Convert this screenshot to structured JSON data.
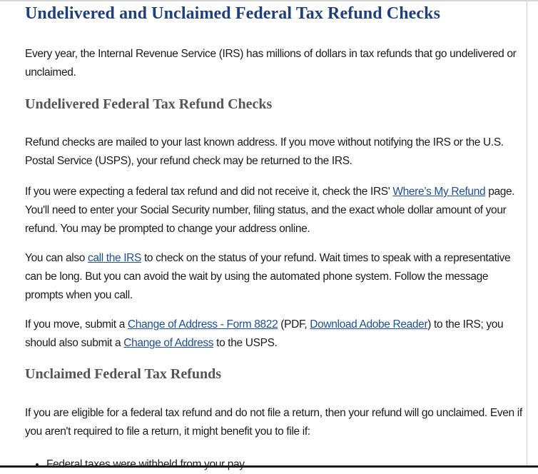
{
  "title": "Undelivered and Unclaimed Federal Tax Refund Checks",
  "intro": "Every year, the Internal Revenue Service (IRS) has millions of dollars in tax refunds that go undelivered or unclaimed.",
  "section1": {
    "heading": "Undelivered Federal Tax Refund Checks",
    "p1": "Refund checks are mailed to your last known address. If you move without notifying the IRS or the U.S. Postal Service (USPS), your refund check may be returned to the IRS.",
    "p2_a": "If you were expecting a federal tax refund and did not receive it, check the IRS' ",
    "p2_link": "Where’s My Refund",
    "p2_b": " page. You'll need to enter your Social Security number, filing status, and the exact whole dollar amount of your refund. You may be prompted to change your address online.",
    "p3_a": "You can also ",
    "p3_link": "call the IRS",
    "p3_b": " to check on the status of your refund. Wait times to speak with a representative can be long. But you can avoid the wait by using the automated phone system. Follow the message prompts when you call.",
    "p4_a": "If you move, submit a ",
    "p4_link1": "Change of Address - Form 8822",
    "p4_b": " (PDF, ",
    "p4_link2": "Download Adobe Reader",
    "p4_c": ") to the IRS; you should also submit a ",
    "p4_link3": "Change of Address",
    "p4_d": " to the USPS."
  },
  "section2": {
    "heading": "Unclaimed Federal Tax Refunds",
    "p1": "If you are eligible for a federal tax refund and do not file a return, then your refund will go unclaimed. Even if you aren't required to file a return, it might benefit you to file if:",
    "bullets": [
      "Federal taxes were withheld from your pay"
    ]
  }
}
